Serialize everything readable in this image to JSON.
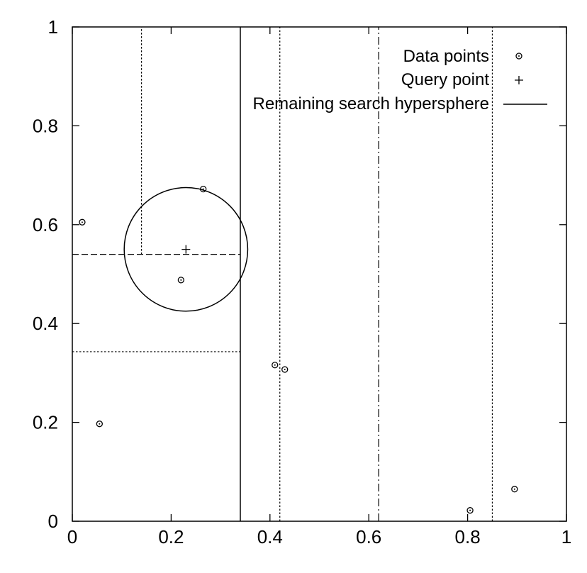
{
  "chart_data": {
    "type": "scatter",
    "title": "",
    "xlabel": "",
    "ylabel": "",
    "xlim": [
      0,
      1
    ],
    "ylim": [
      0,
      1
    ],
    "xticks": [
      0,
      0.2,
      0.4,
      0.6,
      0.8,
      1
    ],
    "yticks": [
      0,
      0.2,
      0.4,
      0.6,
      0.8,
      1
    ],
    "xtick_labels": [
      "0",
      "0.2",
      "0.4",
      "0.6",
      "0.8",
      "1"
    ],
    "ytick_labels": [
      "0",
      "0.2",
      "0.4",
      "0.6",
      "0.8",
      "1"
    ],
    "grid": false,
    "legend_position": "top-right",
    "series": [
      {
        "name": "Data points",
        "marker": "circle",
        "points": [
          {
            "x": 0.02,
            "y": 0.605
          },
          {
            "x": 0.055,
            "y": 0.197
          },
          {
            "x": 0.22,
            "y": 0.488
          },
          {
            "x": 0.265,
            "y": 0.672
          },
          {
            "x": 0.41,
            "y": 0.316
          },
          {
            "x": 0.43,
            "y": 0.307
          },
          {
            "x": 0.805,
            "y": 0.022
          },
          {
            "x": 0.895,
            "y": 0.065
          }
        ]
      },
      {
        "name": "Query point",
        "marker": "plus",
        "points": [
          {
            "x": 0.23,
            "y": 0.55
          }
        ]
      },
      {
        "name": "Remaining search hypersphere",
        "marker": "line",
        "circle": {
          "cx": 0.23,
          "cy": 0.55,
          "r": 0.125
        }
      }
    ],
    "partitions": [
      {
        "orientation": "vertical",
        "at": 0.14,
        "from": 0.54,
        "to": 1,
        "style": "dotted"
      },
      {
        "orientation": "vertical",
        "at": 0.34,
        "from": 0,
        "to": 1,
        "style": "solid"
      },
      {
        "orientation": "vertical",
        "at": 0.42,
        "from": 0,
        "to": 1,
        "style": "dotted"
      },
      {
        "orientation": "vertical",
        "at": 0.62,
        "from": 0,
        "to": 1,
        "style": "dashdot"
      },
      {
        "orientation": "vertical",
        "at": 0.85,
        "from": 0,
        "to": 1,
        "style": "dotted"
      },
      {
        "orientation": "horizontal",
        "at": 0.54,
        "from": 0,
        "to": 0.34,
        "style": "dashed"
      },
      {
        "orientation": "horizontal",
        "at": 0.343,
        "from": 0,
        "to": 0.34,
        "style": "dotted"
      }
    ]
  }
}
